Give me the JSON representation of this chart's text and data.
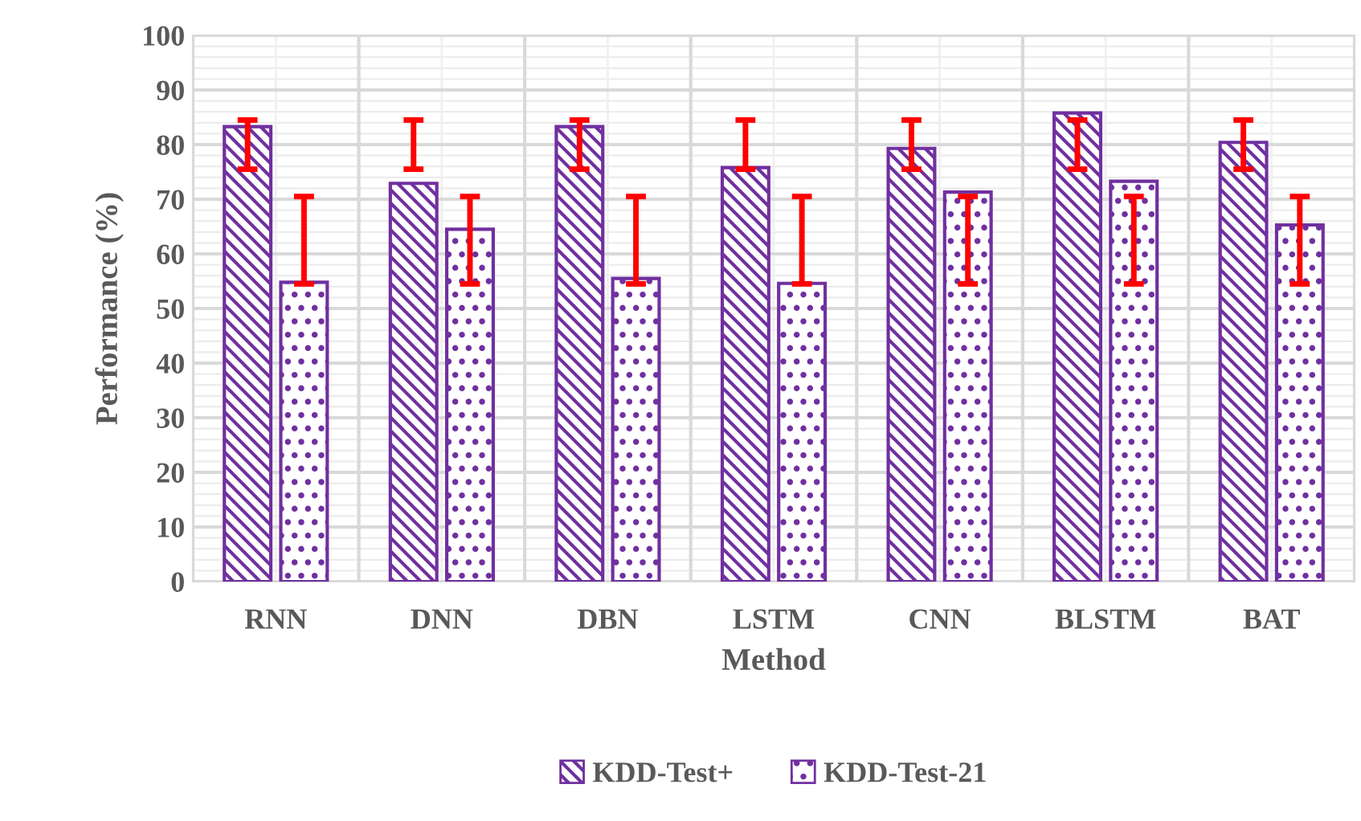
{
  "chart_data": {
    "type": "bar",
    "xlabel": "Method",
    "ylabel": "Performance (%)",
    "categories": [
      "RNN",
      "DNN",
      "DBN",
      "LSTM",
      "CNN",
      "BLSTM",
      "BAT"
    ],
    "series": [
      {
        "name": "KDD-Test+",
        "color": "#7030a0",
        "values": [
          83.3,
          72.9,
          83.3,
          75.8,
          79.3,
          85.8,
          80.4
        ],
        "errors": [
          [
            75.5,
            84.5
          ],
          [
            75.5,
            84.5
          ],
          [
            75.5,
            84.5
          ],
          [
            75.5,
            84.5
          ],
          [
            75.5,
            84.5
          ],
          [
            75.5,
            84.5
          ],
          [
            75.5,
            84.5
          ]
        ]
      },
      {
        "name": "KDD-Test-21",
        "color": "#7030a0",
        "values": [
          54.8,
          64.5,
          55.5,
          54.6,
          71.3,
          73.3,
          65.3
        ],
        "errors": [
          [
            54.5,
            70.5
          ],
          [
            54.5,
            70.5
          ],
          [
            54.5,
            70.5
          ],
          [
            54.5,
            70.5
          ],
          [
            54.5,
            70.5
          ],
          [
            54.5,
            70.5
          ],
          [
            54.5,
            70.5
          ]
        ]
      }
    ],
    "ylim": [
      0,
      100
    ],
    "yticks": [
      0,
      10,
      20,
      30,
      40,
      50,
      60,
      70,
      80,
      90,
      100
    ],
    "grid": true,
    "legend": "bottom"
  }
}
